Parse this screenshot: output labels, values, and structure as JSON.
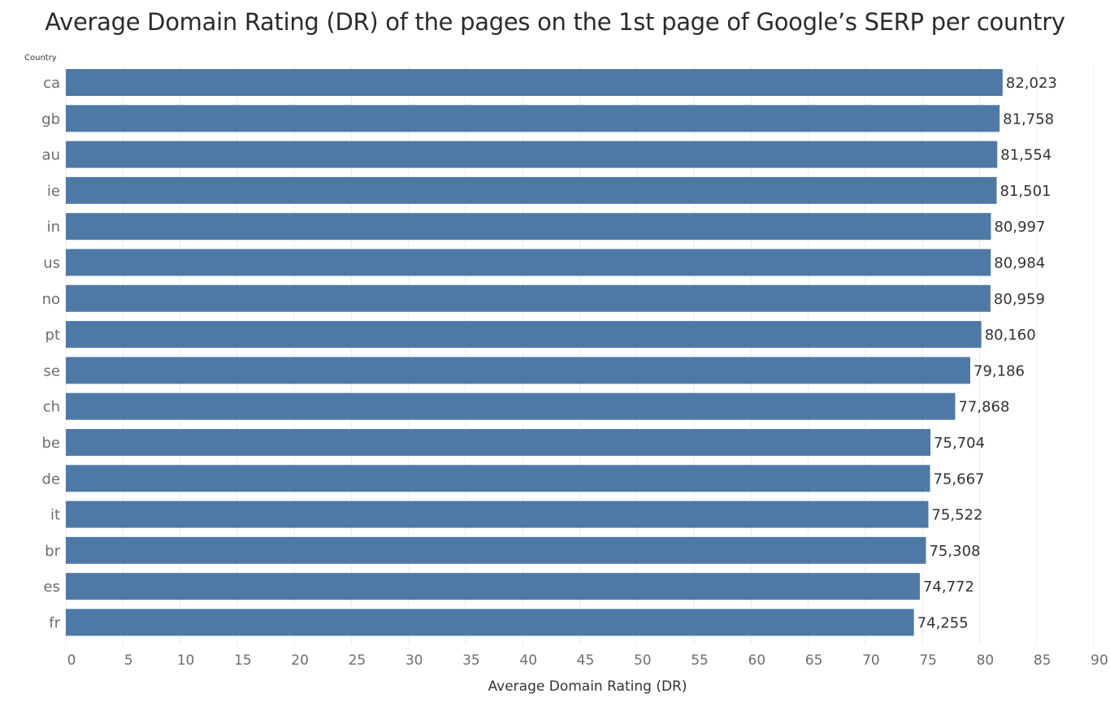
{
  "chart_data": {
    "type": "bar",
    "orientation": "horizontal",
    "title": "Average Domain Rating (DR) of the pages on the 1st page of Google’s SERP per country",
    "dimension_label": "Country",
    "xlabel": "Average Domain Rating (DR)",
    "xlim": [
      0,
      90
    ],
    "xticks": [
      0,
      5,
      10,
      15,
      20,
      25,
      30,
      35,
      40,
      45,
      50,
      55,
      60,
      65,
      70,
      75,
      80,
      85,
      90
    ],
    "grid": true,
    "bar_color": "#4e79a7",
    "categories": [
      "ca",
      "gb",
      "au",
      "ie",
      "in",
      "us",
      "no",
      "pt",
      "se",
      "ch",
      "be",
      "de",
      "it",
      "br",
      "es",
      "fr"
    ],
    "values": [
      82.023,
      81.758,
      81.554,
      81.501,
      80.997,
      80.984,
      80.959,
      80.16,
      79.186,
      77.868,
      75.704,
      75.667,
      75.522,
      75.308,
      74.772,
      74.255
    ],
    "value_labels": [
      "82,023",
      "81,758",
      "81,554",
      "81,501",
      "80,997",
      "80,984",
      "80,959",
      "80,160",
      "79,186",
      "77,868",
      "75,704",
      "75,667",
      "75,522",
      "75,308",
      "74,772",
      "74,255"
    ]
  }
}
